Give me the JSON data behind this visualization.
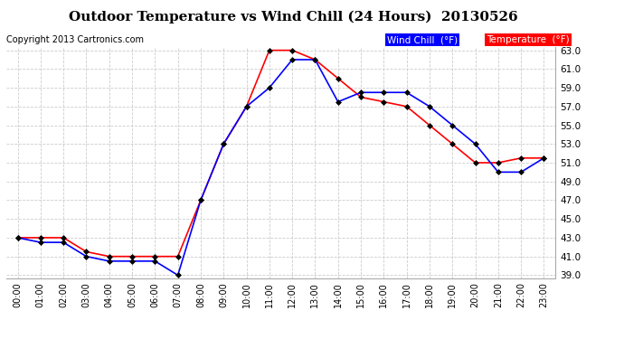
{
  "title": "Outdoor Temperature vs Wind Chill (24 Hours)  20130526",
  "copyright": "Copyright 2013 Cartronics.com",
  "hours": [
    "00:00",
    "01:00",
    "02:00",
    "03:00",
    "04:00",
    "05:00",
    "06:00",
    "07:00",
    "08:00",
    "09:00",
    "10:00",
    "11:00",
    "12:00",
    "13:00",
    "14:00",
    "15:00",
    "16:00",
    "17:00",
    "18:00",
    "19:00",
    "20:00",
    "21:00",
    "22:00",
    "23:00"
  ],
  "temperature": [
    43.0,
    43.0,
    43.0,
    41.5,
    41.0,
    41.0,
    41.0,
    41.0,
    47.0,
    53.0,
    57.0,
    63.0,
    63.0,
    62.0,
    60.0,
    58.0,
    57.5,
    57.0,
    55.0,
    53.0,
    51.0,
    51.0,
    51.5,
    51.5
  ],
  "wind_chill": [
    43.0,
    42.5,
    42.5,
    41.0,
    40.5,
    40.5,
    40.5,
    39.0,
    47.0,
    53.0,
    57.0,
    59.0,
    62.0,
    62.0,
    57.5,
    58.5,
    58.5,
    58.5,
    57.0,
    55.0,
    53.0,
    50.0,
    50.0,
    51.5
  ],
  "temp_color": "#ff0000",
  "wind_chill_color": "#0000ff",
  "bg_color": "#ffffff",
  "grid_color": "#cccccc",
  "ylim_min": 39.0,
  "ylim_max": 63.0,
  "ytick_step": 2.0,
  "legend_wind_chill_bg": "#0000ff",
  "legend_temp_bg": "#ff0000",
  "legend_text_color": "#ffffff",
  "title_fontsize": 11,
  "copyright_fontsize": 7,
  "marker": "D",
  "marker_size": 3,
  "linewidth": 1.2
}
